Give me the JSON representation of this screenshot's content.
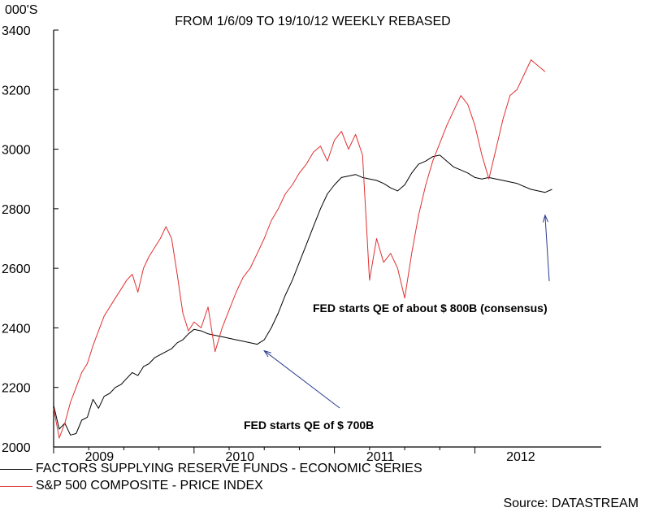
{
  "chart_data": {
    "type": "line",
    "title": "FROM 1/6/09 TO 19/10/12 WEEKLY REBASED",
    "ylabel": "000'S",
    "xlabel": "",
    "y_ticks": [
      2000,
      2200,
      2400,
      2600,
      2800,
      3000,
      3200,
      3400
    ],
    "ylim": [
      2000,
      3400
    ],
    "x_ticks": [
      "2009",
      "2010",
      "2011",
      "2012"
    ],
    "xlim": [
      2009.0,
      2012.9
    ],
    "grid": false,
    "legend_position": "bottom",
    "series": [
      {
        "name": "FACTORS SUPPLYING RESERVE FUNDS - ECONOMIC SERIES",
        "color": "#000000",
        "points": [
          [
            2009.0,
            2140
          ],
          [
            2009.04,
            2060
          ],
          [
            2009.08,
            2080
          ],
          [
            2009.12,
            2040
          ],
          [
            2009.16,
            2045
          ],
          [
            2009.2,
            2090
          ],
          [
            2009.24,
            2100
          ],
          [
            2009.28,
            2160
          ],
          [
            2009.32,
            2130
          ],
          [
            2009.36,
            2170
          ],
          [
            2009.4,
            2180
          ],
          [
            2009.44,
            2200
          ],
          [
            2009.48,
            2210
          ],
          [
            2009.52,
            2230
          ],
          [
            2009.56,
            2250
          ],
          [
            2009.6,
            2240
          ],
          [
            2009.64,
            2270
          ],
          [
            2009.68,
            2280
          ],
          [
            2009.72,
            2300
          ],
          [
            2009.76,
            2310
          ],
          [
            2009.8,
            2320
          ],
          [
            2009.84,
            2330
          ],
          [
            2009.88,
            2350
          ],
          [
            2009.92,
            2360
          ],
          [
            2009.96,
            2380
          ],
          [
            2010.0,
            2395
          ],
          [
            2010.05,
            2390
          ],
          [
            2010.1,
            2380
          ],
          [
            2010.15,
            2375
          ],
          [
            2010.2,
            2370
          ],
          [
            2010.25,
            2365
          ],
          [
            2010.3,
            2360
          ],
          [
            2010.35,
            2355
          ],
          [
            2010.4,
            2350
          ],
          [
            2010.45,
            2345
          ],
          [
            2010.5,
            2360
          ],
          [
            2010.55,
            2400
          ],
          [
            2010.6,
            2450
          ],
          [
            2010.65,
            2510
          ],
          [
            2010.7,
            2560
          ],
          [
            2010.75,
            2620
          ],
          [
            2010.8,
            2680
          ],
          [
            2010.85,
            2740
          ],
          [
            2010.9,
            2800
          ],
          [
            2010.95,
            2850
          ],
          [
            2011.0,
            2880
          ],
          [
            2011.05,
            2905
          ],
          [
            2011.1,
            2910
          ],
          [
            2011.15,
            2915
          ],
          [
            2011.2,
            2905
          ],
          [
            2011.25,
            2900
          ],
          [
            2011.3,
            2895
          ],
          [
            2011.35,
            2885
          ],
          [
            2011.4,
            2870
          ],
          [
            2011.45,
            2860
          ],
          [
            2011.5,
            2880
          ],
          [
            2011.55,
            2920
          ],
          [
            2011.6,
            2950
          ],
          [
            2011.65,
            2960
          ],
          [
            2011.7,
            2975
          ],
          [
            2011.75,
            2980
          ],
          [
            2011.8,
            2960
          ],
          [
            2011.85,
            2940
          ],
          [
            2011.9,
            2930
          ],
          [
            2011.95,
            2920
          ],
          [
            2012.0,
            2905
          ],
          [
            2012.05,
            2900
          ],
          [
            2012.1,
            2905
          ],
          [
            2012.15,
            2900
          ],
          [
            2012.2,
            2895
          ],
          [
            2012.25,
            2890
          ],
          [
            2012.3,
            2885
          ],
          [
            2012.35,
            2875
          ],
          [
            2012.4,
            2865
          ],
          [
            2012.45,
            2860
          ],
          [
            2012.5,
            2855
          ],
          [
            2012.55,
            2865
          ]
        ]
      },
      {
        "name": "S&P 500 COMPOSITE - PRICE INDEX",
        "color": "#e03030",
        "points": [
          [
            2009.0,
            2130
          ],
          [
            2009.04,
            2030
          ],
          [
            2009.08,
            2080
          ],
          [
            2009.12,
            2150
          ],
          [
            2009.16,
            2200
          ],
          [
            2009.2,
            2250
          ],
          [
            2009.24,
            2280
          ],
          [
            2009.28,
            2340
          ],
          [
            2009.32,
            2390
          ],
          [
            2009.36,
            2440
          ],
          [
            2009.4,
            2470
          ],
          [
            2009.44,
            2500
          ],
          [
            2009.48,
            2530
          ],
          [
            2009.52,
            2560
          ],
          [
            2009.56,
            2580
          ],
          [
            2009.6,
            2520
          ],
          [
            2009.64,
            2600
          ],
          [
            2009.68,
            2640
          ],
          [
            2009.72,
            2670
          ],
          [
            2009.76,
            2700
          ],
          [
            2009.8,
            2740
          ],
          [
            2009.84,
            2700
          ],
          [
            2009.88,
            2580
          ],
          [
            2009.92,
            2450
          ],
          [
            2009.96,
            2390
          ],
          [
            2010.0,
            2420
          ],
          [
            2010.05,
            2400
          ],
          [
            2010.1,
            2470
          ],
          [
            2010.15,
            2320
          ],
          [
            2010.2,
            2400
          ],
          [
            2010.25,
            2460
          ],
          [
            2010.3,
            2520
          ],
          [
            2010.35,
            2570
          ],
          [
            2010.4,
            2600
          ],
          [
            2010.45,
            2650
          ],
          [
            2010.5,
            2700
          ],
          [
            2010.55,
            2760
          ],
          [
            2010.6,
            2800
          ],
          [
            2010.65,
            2850
          ],
          [
            2010.7,
            2880
          ],
          [
            2010.75,
            2920
          ],
          [
            2010.8,
            2950
          ],
          [
            2010.85,
            2990
          ],
          [
            2010.9,
            3010
          ],
          [
            2010.95,
            2960
          ],
          [
            2011.0,
            3030
          ],
          [
            2011.05,
            3060
          ],
          [
            2011.1,
            3000
          ],
          [
            2011.15,
            3050
          ],
          [
            2011.2,
            2980
          ],
          [
            2011.25,
            2560
          ],
          [
            2011.3,
            2700
          ],
          [
            2011.35,
            2620
          ],
          [
            2011.4,
            2650
          ],
          [
            2011.45,
            2600
          ],
          [
            2011.5,
            2500
          ],
          [
            2011.55,
            2650
          ],
          [
            2011.6,
            2780
          ],
          [
            2011.65,
            2880
          ],
          [
            2011.7,
            2960
          ],
          [
            2011.75,
            3020
          ],
          [
            2011.8,
            3080
          ],
          [
            2011.85,
            3130
          ],
          [
            2011.9,
            3180
          ],
          [
            2011.95,
            3150
          ],
          [
            2012.0,
            3080
          ],
          [
            2012.05,
            2980
          ],
          [
            2012.1,
            2900
          ],
          [
            2012.15,
            3000
          ],
          [
            2012.2,
            3100
          ],
          [
            2012.25,
            3180
          ],
          [
            2012.3,
            3200
          ],
          [
            2012.35,
            3250
          ],
          [
            2012.4,
            3300
          ],
          [
            2012.45,
            3280
          ],
          [
            2012.5,
            3260
          ]
        ]
      }
    ],
    "annotations": [
      {
        "text": "FED starts QE of $ 700B",
        "points_to": [
          2010.5,
          2345
        ]
      },
      {
        "text": "FED starts QE of about $ 800B (consensus)",
        "points_to": [
          2012.5,
          2800
        ]
      }
    ],
    "source": "Source: DATASTREAM"
  }
}
